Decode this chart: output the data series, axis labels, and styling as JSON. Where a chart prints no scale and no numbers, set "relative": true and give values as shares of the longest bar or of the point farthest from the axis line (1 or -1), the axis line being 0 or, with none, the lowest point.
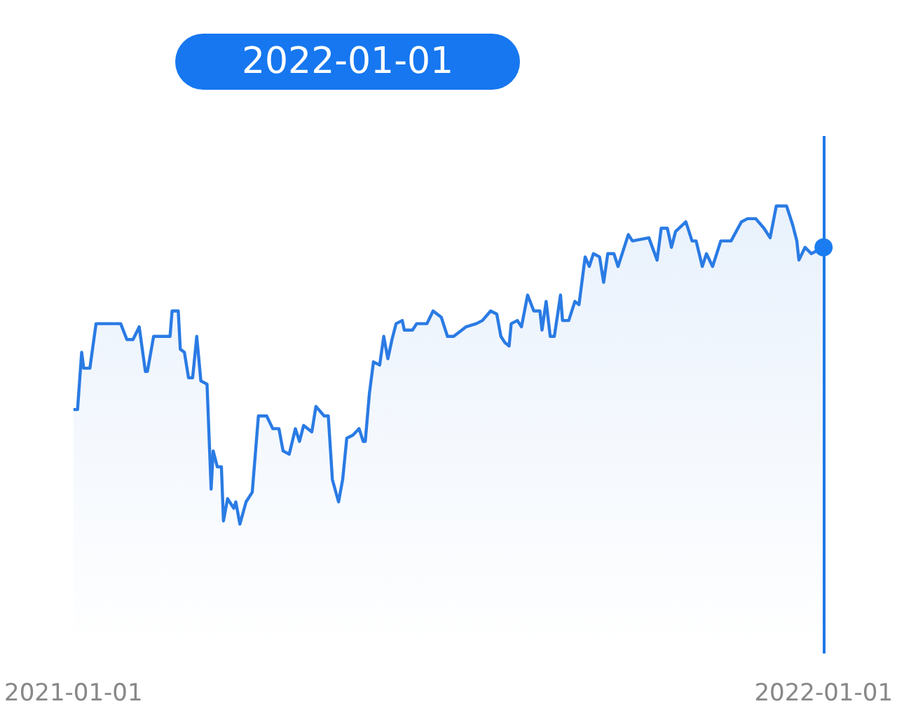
{
  "chart_data": {
    "type": "line",
    "relative": true,
    "xlim": [
      "2021-01-01",
      "2022-01-01"
    ],
    "xticks": [
      "2021-01-01",
      "2022-01-01"
    ],
    "annotations": [
      "2022-01-01"
    ],
    "ref_lines": [
      {
        "axis": "x",
        "value": "2022-01-01",
        "color": "#1f78e6",
        "line_style": "solid"
      }
    ],
    "series": [
      {
        "type": "area",
        "color": "#2a7be4",
        "x": [
          "2021-01-01",
          "2021-01-03",
          "2021-01-05",
          "2021-01-06",
          "2021-01-09",
          "2021-01-12",
          "2021-01-15",
          "2021-01-24",
          "2021-01-27",
          "2021-01-30",
          "2021-02-02",
          "2021-02-05",
          "2021-02-06",
          "2021-02-09",
          "2021-02-17",
          "2021-02-18",
          "2021-02-21",
          "2021-02-22",
          "2021-02-24",
          "2021-02-26",
          "2021-02-28",
          "2021-03-02",
          "2021-03-04",
          "2021-03-07",
          "2021-03-09",
          "2021-03-10",
          "2021-03-12",
          "2021-03-14",
          "2021-03-15",
          "2021-03-17",
          "2021-03-20",
          "2021-03-21",
          "2021-03-23",
          "2021-03-26",
          "2021-03-29",
          "2021-04-01",
          "2021-04-05",
          "2021-04-08",
          "2021-04-11",
          "2021-04-13",
          "2021-04-16",
          "2021-04-19",
          "2021-04-21",
          "2021-04-23",
          "2021-04-27",
          "2021-04-29",
          "2021-05-03",
          "2021-05-05",
          "2021-05-07",
          "2021-05-10",
          "2021-05-12",
          "2021-05-14",
          "2021-05-17",
          "2021-05-20",
          "2021-05-22",
          "2021-05-23",
          "2021-05-25",
          "2021-05-27",
          "2021-05-30",
          "2021-06-01",
          "2021-06-03",
          "2021-06-05",
          "2021-06-07",
          "2021-06-10",
          "2021-06-11",
          "2021-06-15",
          "2021-06-17",
          "2021-06-22",
          "2021-06-25",
          "2021-06-29",
          "2021-07-02",
          "2021-07-05",
          "2021-07-11",
          "2021-07-16",
          "2021-07-19",
          "2021-07-23",
          "2021-07-26",
          "2021-07-28",
          "2021-07-30",
          "2021-08-01",
          "2021-08-02",
          "2021-08-05",
          "2021-08-07",
          "2021-08-10",
          "2021-08-13",
          "2021-08-16",
          "2021-08-17",
          "2021-08-19",
          "2021-08-21",
          "2021-08-23",
          "2021-08-26",
          "2021-08-27",
          "2021-08-30",
          "2021-09-02",
          "2021-09-04",
          "2021-09-07",
          "2021-09-09",
          "2021-09-11",
          "2021-09-14",
          "2021-09-16",
          "2021-09-18",
          "2021-09-21",
          "2021-09-23",
          "2021-09-25",
          "2021-09-28",
          "2021-09-30",
          "2021-10-08",
          "2021-10-12",
          "2021-10-14",
          "2021-10-17",
          "2021-10-19",
          "2021-10-21",
          "2021-10-26",
          "2021-10-29",
          "2021-10-31",
          "2021-11-03",
          "2021-11-05",
          "2021-11-08",
          "2021-11-12",
          "2021-11-17",
          "2021-11-22",
          "2021-11-25",
          "2021-11-29",
          "2021-12-03",
          "2021-12-06",
          "2021-12-09",
          "2021-12-14",
          "2021-12-17",
          "2021-12-19",
          "2021-12-20",
          "2021-12-23",
          "2021-12-26",
          "2022-01-01"
        ],
        "values": [
          0.36,
          0.36,
          0.54,
          0.49,
          0.49,
          0.63,
          0.63,
          0.63,
          0.58,
          0.58,
          0.62,
          0.48,
          0.48,
          0.59,
          0.59,
          0.67,
          0.67,
          0.55,
          0.54,
          0.46,
          0.46,
          0.59,
          0.45,
          0.44,
          0.11,
          0.23,
          0.18,
          0.18,
          0.01,
          0.08,
          0.05,
          0.07,
          0,
          0.07,
          0.1,
          0.34,
          0.34,
          0.3,
          0.3,
          0.23,
          0.22,
          0.3,
          0.26,
          0.31,
          0.29,
          0.37,
          0.34,
          0.34,
          0.14,
          0.07,
          0.14,
          0.27,
          0.28,
          0.3,
          0.26,
          0.26,
          0.41,
          0.51,
          0.5,
          0.59,
          0.52,
          0.58,
          0.63,
          0.64,
          0.61,
          0.61,
          0.63,
          0.63,
          0.67,
          0.65,
          0.59,
          0.59,
          0.62,
          0.63,
          0.64,
          0.67,
          0.66,
          0.59,
          0.57,
          0.56,
          0.63,
          0.64,
          0.62,
          0.72,
          0.67,
          0.67,
          0.61,
          0.7,
          0.59,
          0.59,
          0.72,
          0.64,
          0.64,
          0.7,
          0.69,
          0.84,
          0.81,
          0.85,
          0.84,
          0.76,
          0.85,
          0.85,
          0.81,
          0.85,
          0.91,
          0.89,
          0.9,
          0.83,
          0.93,
          0.93,
          0.87,
          0.92,
          0.95,
          0.89,
          0.89,
          0.81,
          0.85,
          0.81,
          0.89,
          0.89,
          0.95,
          0.96,
          0.96,
          0.93,
          0.9,
          1,
          1,
          0.94,
          0.89,
          0.83,
          0.87,
          0.85,
          0.87
        ]
      }
    ]
  }
}
